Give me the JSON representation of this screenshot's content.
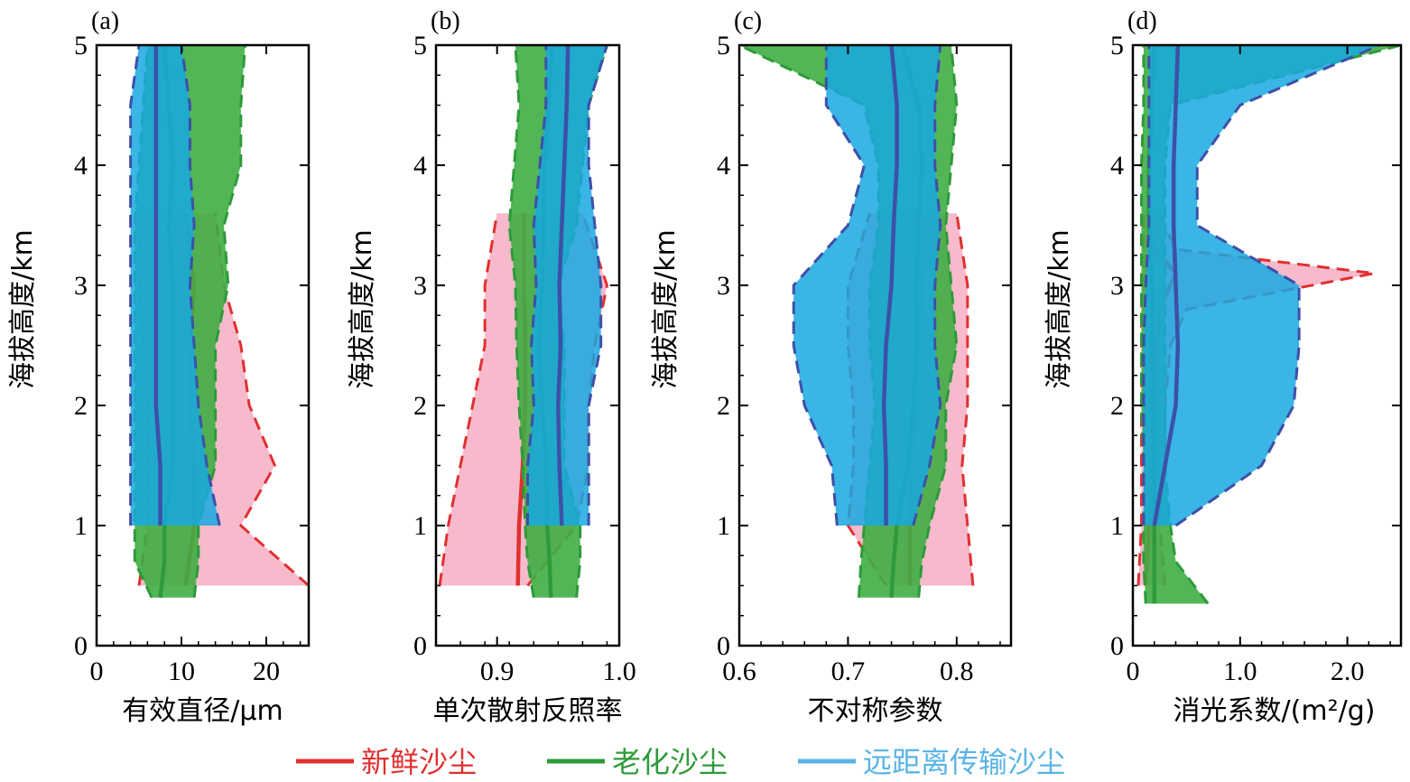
{
  "legend": [
    {
      "label": "新鲜沙尘",
      "color": "#e03030"
    },
    {
      "label": "老化沙尘",
      "color": "#2e9a3a"
    },
    {
      "label": "远距离传输沙尘",
      "color": "#5ab4e6"
    }
  ],
  "colors": {
    "fresh_line": "#e03030",
    "fresh_fill": "#f5b3c6",
    "aged_line": "#2e9a3a",
    "aged_fill": "#3fae44",
    "aged_fill_light": "#8cc63f",
    "lrt_line": "#3d50a8",
    "lrt_fill": "#18a8e0",
    "lrt_fill_light": "#7ec6ea"
  },
  "chart_data": [
    {
      "type": "area",
      "panel_label": "(a)",
      "xlabel": "有效直径/μm",
      "ylabel": "海拔高度/km",
      "xlim": [
        0,
        25
      ],
      "ylim": [
        0,
        5
      ],
      "xticks": [
        0,
        10,
        20
      ],
      "xtick_labels": [
        "0",
        "10",
        "20"
      ],
      "yticks": [
        0,
        1,
        2,
        3,
        4,
        5
      ],
      "ytick_labels": [
        "0",
        "1",
        "2",
        "3",
        "4",
        "5"
      ],
      "series": [
        {
          "name": "新鲜沙尘",
          "y": [
            0.5,
            1.0,
            1.5,
            2.0,
            2.5,
            3.0,
            3.6
          ],
          "mean": [
            10.5,
            11.5,
            11.5,
            11.0,
            11.0,
            11.5,
            10.5
          ],
          "lower": [
            5,
            6,
            6,
            6,
            5.5,
            5,
            5
          ],
          "upper": [
            25,
            17,
            21,
            18,
            17,
            15,
            14
          ]
        },
        {
          "name": "老化沙尘",
          "y": [
            0.4,
            0.7,
            1.0,
            1.5,
            2.0,
            2.5,
            3.0,
            3.5,
            4.0,
            4.5,
            5.0
          ],
          "mean": [
            7.5,
            8.0,
            8.0,
            9.0,
            9.0,
            9.0,
            9.0,
            8.5,
            9.0,
            8.5,
            8.0
          ],
          "lower": [
            6.5,
            4.5,
            4.5,
            4.5,
            4.5,
            4.5,
            4.5,
            4.5,
            5.0,
            5.5,
            6.0
          ],
          "upper": [
            11.5,
            12.0,
            12.0,
            14.0,
            14.0,
            14.0,
            15.5,
            15.0,
            17.0,
            17.0,
            17.5
          ]
        },
        {
          "name": "远距离传输沙尘",
          "y": [
            1.0,
            1.5,
            2.0,
            2.5,
            3.0,
            3.5,
            4.0,
            4.5,
            5.0
          ],
          "mean": [
            7.5,
            7.5,
            7.0,
            7.0,
            7.0,
            7.0,
            7.0,
            7.0,
            7.0
          ],
          "lower": [
            4,
            4,
            4,
            4,
            4,
            4,
            4,
            4,
            5
          ],
          "upper": [
            14.5,
            13.0,
            12.0,
            11.5,
            11.0,
            11.5,
            11.0,
            11.0,
            10.0
          ]
        }
      ]
    },
    {
      "type": "area",
      "panel_label": "(b)",
      "xlabel": "单次散射反照率",
      "ylabel": "海拔高度/km",
      "xlim": [
        0.85,
        1.0
      ],
      "ylim": [
        0,
        5
      ],
      "xticks": [
        0.9,
        1.0
      ],
      "xtick_labels": [
        "0.9",
        "1.0"
      ],
      "yticks": [
        0,
        1,
        2,
        3,
        4,
        5
      ],
      "ytick_labels": [
        "0",
        "1",
        "2",
        "3",
        "4",
        "5"
      ],
      "series": [
        {
          "name": "新鲜沙尘",
          "y": [
            0.5,
            1.0,
            1.5,
            2.0,
            2.5,
            3.0,
            3.6
          ],
          "mean": [
            0.917,
            0.918,
            0.921,
            0.923,
            0.923,
            0.922,
            0.922
          ],
          "lower": [
            0.853,
            0.86,
            0.87,
            0.88,
            0.89,
            0.89,
            0.9
          ],
          "upper": [
            0.925,
            0.965,
            0.975,
            0.975,
            0.98,
            0.99,
            0.97
          ]
        },
        {
          "name": "老化沙尘",
          "y": [
            0.4,
            0.7,
            1.0,
            1.5,
            2.0,
            2.5,
            3.0,
            3.5,
            4.0,
            4.5,
            5.0
          ],
          "mean": [
            0.944,
            0.943,
            0.941,
            0.94,
            0.937,
            0.934,
            0.937,
            0.938,
            0.939,
            0.942,
            0.945
          ],
          "lower": [
            0.93,
            0.925,
            0.923,
            0.921,
            0.918,
            0.916,
            0.915,
            0.91,
            0.914,
            0.918,
            0.915
          ],
          "upper": [
            0.965,
            0.968,
            0.968,
            0.955,
            0.955,
            0.955,
            0.95,
            0.965,
            0.97,
            0.975,
            0.99
          ]
        },
        {
          "name": "远距离传输沙尘",
          "y": [
            1.0,
            1.5,
            2.0,
            2.5,
            3.0,
            3.5,
            4.0,
            4.5,
            5.0
          ],
          "mean": [
            0.953,
            0.951,
            0.95,
            0.952,
            0.951,
            0.953,
            0.955,
            0.957,
            0.958
          ],
          "lower": [
            0.925,
            0.925,
            0.93,
            0.928,
            0.932,
            0.93,
            0.935,
            0.94,
            0.94
          ],
          "upper": [
            0.975,
            0.975,
            0.975,
            0.985,
            0.985,
            0.98,
            0.975,
            0.975,
            0.99
          ]
        }
      ]
    },
    {
      "type": "area",
      "panel_label": "(c)",
      "xlabel": "不对称参数",
      "ylabel": "海拔高度/km",
      "xlim": [
        0.6,
        0.85
      ],
      "ylim": [
        0,
        5
      ],
      "xticks": [
        0.6,
        0.7,
        0.8
      ],
      "xtick_labels": [
        "0.6",
        "0.7",
        "0.8"
      ],
      "yticks": [
        0,
        1,
        2,
        3,
        4,
        5
      ],
      "ytick_labels": [
        "0",
        "1",
        "2",
        "3",
        "4",
        "5"
      ],
      "series": [
        {
          "name": "新鲜沙尘",
          "y": [
            0.5,
            1.0,
            1.5,
            2.0,
            2.5,
            3.0,
            3.6
          ],
          "mean": [
            0.757,
            0.757,
            0.758,
            0.762,
            0.765,
            0.768,
            0.762
          ],
          "lower": [
            0.735,
            0.7,
            0.705,
            0.705,
            0.7,
            0.7,
            0.72
          ],
          "upper": [
            0.815,
            0.81,
            0.805,
            0.81,
            0.81,
            0.81,
            0.8
          ]
        },
        {
          "name": "老化沙尘",
          "y": [
            0.4,
            0.7,
            1.0,
            1.5,
            2.0,
            2.5,
            3.0,
            3.5,
            4.0,
            4.5,
            5.0
          ],
          "mean": [
            0.74,
            0.742,
            0.745,
            0.755,
            0.76,
            0.763,
            0.763,
            0.765,
            0.768,
            0.765,
            0.75
          ],
          "lower": [
            0.71,
            0.712,
            0.715,
            0.72,
            0.725,
            0.72,
            0.72,
            0.728,
            0.728,
            0.715,
            0.6
          ],
          "upper": [
            0.765,
            0.768,
            0.775,
            0.79,
            0.79,
            0.8,
            0.795,
            0.79,
            0.795,
            0.8,
            0.795
          ]
        },
        {
          "name": "远距离传输沙尘",
          "y": [
            1.0,
            1.5,
            2.0,
            2.5,
            3.0,
            3.5,
            4.0,
            4.5,
            5.0
          ],
          "mean": [
            0.735,
            0.735,
            0.733,
            0.735,
            0.74,
            0.742,
            0.745,
            0.745,
            0.74
          ],
          "lower": [
            0.69,
            0.685,
            0.66,
            0.65,
            0.65,
            0.7,
            0.715,
            0.68,
            0.68
          ],
          "upper": [
            0.76,
            0.775,
            0.785,
            0.78,
            0.78,
            0.785,
            0.78,
            0.78,
            0.785
          ]
        }
      ]
    },
    {
      "type": "area",
      "panel_label": "(d)",
      "xlabel": "消光系数/(m²/g)",
      "ylabel": "海拔高度/km",
      "xlim": [
        0,
        2.5
      ],
      "ylim": [
        0,
        5
      ],
      "xticks": [
        0,
        1.0,
        2.0
      ],
      "xtick_labels": [
        "0",
        "1.0",
        "2.0"
      ],
      "yticks": [
        0,
        1,
        2,
        3,
        4,
        5
      ],
      "ytick_labels": [
        "0",
        "1",
        "2",
        "3",
        "4",
        "5"
      ],
      "series": [
        {
          "name": "新鲜沙尘",
          "y": [
            0.5,
            1.0,
            1.5,
            2.0,
            2.5,
            2.8,
            3.1,
            3.3,
            3.6
          ],
          "mean": [
            0.12,
            0.15,
            0.18,
            0.2,
            0.22,
            0.25,
            0.4,
            0.2,
            0.15
          ],
          "lower": [
            0.05,
            0.08,
            0.08,
            0.08,
            0.08,
            0.08,
            0.1,
            0.1,
            0.1
          ],
          "upper": [
            0.3,
            0.25,
            0.3,
            0.3,
            0.35,
            0.5,
            2.25,
            0.4,
            0.25
          ]
        },
        {
          "name": "老化沙尘",
          "y": [
            0.35,
            0.7,
            1.0,
            1.5,
            2.0,
            2.5,
            3.0,
            3.5,
            4.0,
            4.5,
            5.0
          ],
          "mean": [
            0.2,
            0.2,
            0.2,
            0.2,
            0.18,
            0.18,
            0.18,
            0.15,
            0.15,
            0.18,
            0.2
          ],
          "lower": [
            0.12,
            0.1,
            0.1,
            0.1,
            0.08,
            0.08,
            0.08,
            0.08,
            0.08,
            0.1,
            0.1
          ],
          "upper": [
            0.7,
            0.4,
            0.35,
            0.3,
            0.3,
            0.3,
            0.3,
            0.3,
            0.3,
            0.35,
            2.5
          ]
        },
        {
          "name": "远距离传输沙尘",
          "y": [
            1.0,
            1.5,
            2.0,
            2.5,
            3.0,
            3.5,
            4.0,
            4.5,
            5.0
          ],
          "mean": [
            0.2,
            0.3,
            0.4,
            0.42,
            0.4,
            0.38,
            0.38,
            0.4,
            0.42
          ],
          "lower": [
            0.1,
            0.1,
            0.1,
            0.1,
            0.12,
            0.15,
            0.15,
            0.15,
            0.15
          ],
          "upper": [
            0.4,
            1.2,
            1.5,
            1.55,
            1.55,
            0.6,
            0.6,
            1.0,
            2.3
          ]
        }
      ]
    }
  ]
}
